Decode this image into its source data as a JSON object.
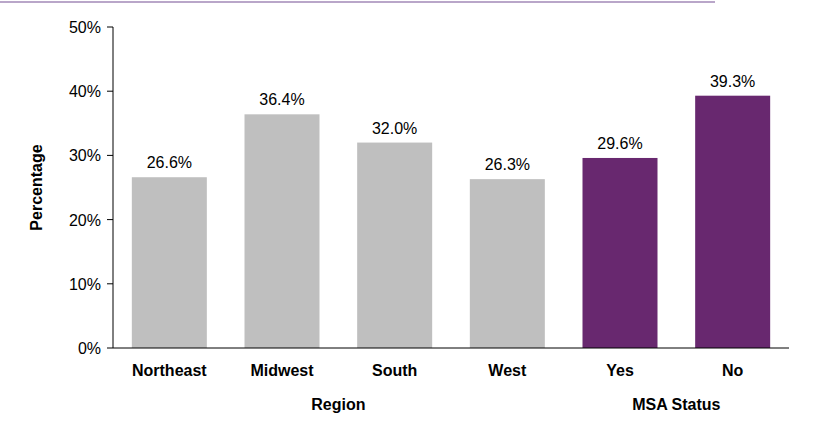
{
  "chart_data": {
    "type": "bar",
    "y_label": "Percentage",
    "categories": [
      "Northeast",
      "Midwest",
      "South",
      "West",
      "Yes",
      "No"
    ],
    "values": [
      26.6,
      36.4,
      32.0,
      26.3,
      29.6,
      39.3
    ],
    "value_labels": [
      "26.6%",
      "36.4%",
      "32.0%",
      "26.3%",
      "29.6%",
      "39.3%"
    ],
    "colors": [
      "#bfbfbf",
      "#bfbfbf",
      "#bfbfbf",
      "#bfbfbf",
      "#68286f",
      "#68286f"
    ],
    "category_groups": [
      {
        "label": "Region",
        "count": 4
      },
      {
        "label": "MSA Status",
        "count": 2
      }
    ],
    "ylim": [
      0,
      50
    ],
    "yticks": [
      {
        "value": 0,
        "label": "0%"
      },
      {
        "value": 10,
        "label": "10%"
      },
      {
        "value": 20,
        "label": "20%"
      },
      {
        "value": 30,
        "label": "30%"
      },
      {
        "value": 40,
        "label": "40%"
      },
      {
        "value": 50,
        "label": "50%"
      }
    ],
    "grid": false,
    "data_labels": true
  }
}
